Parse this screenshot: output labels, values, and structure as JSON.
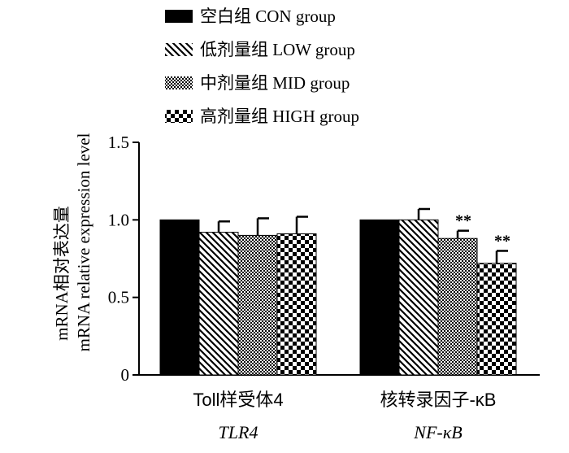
{
  "chart_data": {
    "type": "bar",
    "ylabel_cn": "mRNA相对表达量",
    "ylabel_en": "mRNA relative expression level",
    "ylim": [
      0,
      1.5
    ],
    "yticks": [
      {
        "value": 0,
        "label": "0"
      },
      {
        "value": 0.5,
        "label": "0.5"
      },
      {
        "value": 1.0,
        "label": "1.0"
      },
      {
        "value": 1.5,
        "label": "1.5"
      }
    ],
    "categories": [
      {
        "cn": "Toll样受体4",
        "en": "TLR4"
      },
      {
        "cn": "核转录因子-κB",
        "en": "NF-κB"
      }
    ],
    "series": [
      {
        "name": "空白组 CON group",
        "pattern": "solid",
        "values": [
          1.0,
          1.0
        ],
        "errors": [
          0,
          0
        ],
        "sig": [
          "",
          ""
        ]
      },
      {
        "name": "低剂量组 LOW group",
        "pattern": "diagonal",
        "values": [
          0.92,
          1.0
        ],
        "errors": [
          0.07,
          0.07
        ],
        "sig": [
          "",
          ""
        ]
      },
      {
        "name": "中剂量组  MID group",
        "pattern": "dots",
        "values": [
          0.9,
          0.88
        ],
        "errors": [
          0.11,
          0.05
        ],
        "sig": [
          "",
          "**"
        ]
      },
      {
        "name": "高剂量组 HIGH group",
        "pattern": "checker",
        "values": [
          0.91,
          0.72
        ],
        "errors": [
          0.11,
          0.08
        ],
        "sig": [
          "",
          "**"
        ]
      }
    ],
    "legend_position": "top"
  }
}
